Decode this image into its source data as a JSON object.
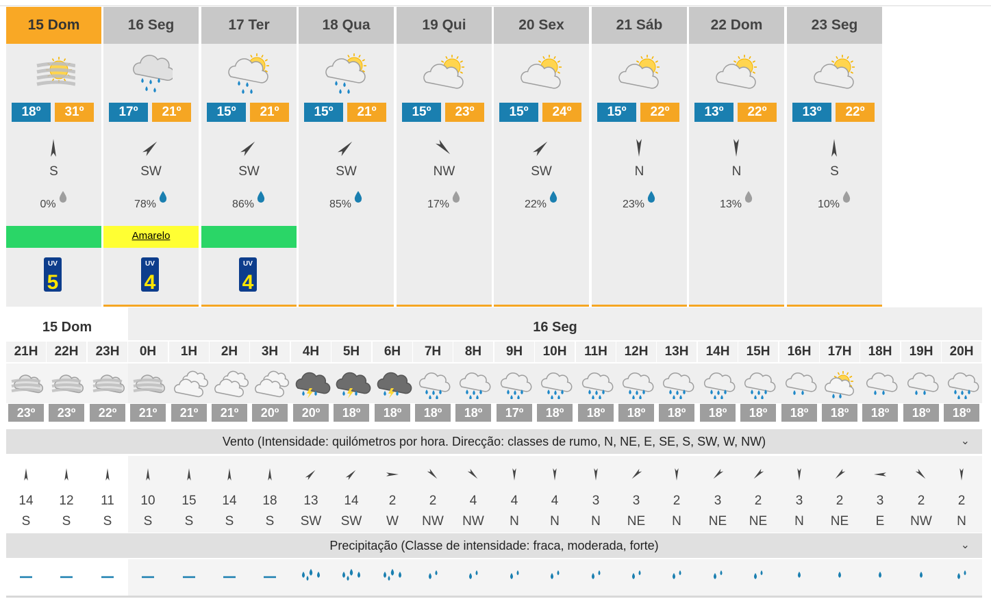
{
  "days": [
    {
      "label": "15 Dom",
      "icon": "fog-sun-icon",
      "tmin": "18º",
      "tmax": "31º",
      "wind_dir": "S",
      "precip": "0%",
      "alert": "",
      "uv": "5",
      "selected": true
    },
    {
      "label": "16 Seg",
      "icon": "rain-cloud-icon",
      "tmin": "17º",
      "tmax": "21º",
      "wind_dir": "SW",
      "precip": "78%",
      "alert": "Amarelo",
      "uv": "4",
      "selected": false
    },
    {
      "label": "17 Ter",
      "icon": "sun-rain-cloud-icon",
      "tmin": "15º",
      "tmax": "21º",
      "wind_dir": "SW",
      "precip": "86%",
      "alert": "",
      "uv": "4",
      "selected": false
    },
    {
      "label": "18 Qua",
      "icon": "sun-rain-cloud-icon",
      "tmin": "15º",
      "tmax": "21º",
      "wind_dir": "SW",
      "precip": "85%",
      "alert": "",
      "uv": "",
      "selected": false
    },
    {
      "label": "19 Qui",
      "icon": "partly-cloudy-icon",
      "tmin": "15º",
      "tmax": "23º",
      "wind_dir": "NW",
      "precip": "17%",
      "alert": "",
      "uv": "",
      "selected": false
    },
    {
      "label": "20 Sex",
      "icon": "partly-cloudy-icon",
      "tmin": "15º",
      "tmax": "24º",
      "wind_dir": "SW",
      "precip": "22%",
      "alert": "",
      "uv": "",
      "selected": false
    },
    {
      "label": "21 Sáb",
      "icon": "partly-cloudy-icon",
      "tmin": "15º",
      "tmax": "22º",
      "wind_dir": "N",
      "precip": "23%",
      "alert": "",
      "uv": "",
      "selected": false
    },
    {
      "label": "22 Dom",
      "icon": "partly-cloudy-icon",
      "tmin": "13º",
      "tmax": "22º",
      "wind_dir": "N",
      "precip": "13%",
      "alert": "",
      "uv": "",
      "selected": false
    },
    {
      "label": "23 Seg",
      "icon": "partly-cloudy-icon",
      "tmin": "13º",
      "tmax": "22º",
      "wind_dir": "S",
      "precip": "10%",
      "alert": "",
      "uv": "",
      "selected": false
    }
  ],
  "uv_label": "UV",
  "hourly": {
    "day1": "15 Dom",
    "day2": "16 Seg",
    "hours": [
      {
        "h": "21H",
        "icon": "fog-icon",
        "t": "23º",
        "ws": "14",
        "wd": "S",
        "p": "none"
      },
      {
        "h": "22H",
        "icon": "fog-icon",
        "t": "23º",
        "ws": "12",
        "wd": "S",
        "p": "none"
      },
      {
        "h": "23H",
        "icon": "fog-icon",
        "t": "22º",
        "ws": "11",
        "wd": "S",
        "p": "none"
      },
      {
        "h": "0H",
        "icon": "fog-icon",
        "t": "21º",
        "ws": "10",
        "wd": "S",
        "p": "none"
      },
      {
        "h": "1H",
        "icon": "cloudy-icon",
        "t": "21º",
        "ws": "15",
        "wd": "S",
        "p": "none"
      },
      {
        "h": "2H",
        "icon": "cloudy-icon",
        "t": "21º",
        "ws": "14",
        "wd": "S",
        "p": "none"
      },
      {
        "h": "3H",
        "icon": "cloudy-icon",
        "t": "20º",
        "ws": "18",
        "wd": "S",
        "p": "none"
      },
      {
        "h": "4H",
        "icon": "thunderstorm-icon",
        "t": "20º",
        "ws": "13",
        "wd": "SW",
        "p": "strong"
      },
      {
        "h": "5H",
        "icon": "thunderstorm-icon",
        "t": "18º",
        "ws": "14",
        "wd": "SW",
        "p": "strong"
      },
      {
        "h": "6H",
        "icon": "thunderstorm-icon",
        "t": "18º",
        "ws": "2",
        "wd": "W",
        "p": "strong"
      },
      {
        "h": "7H",
        "icon": "rain-icon",
        "t": "18º",
        "ws": "2",
        "wd": "NW",
        "p": "moderate"
      },
      {
        "h": "8H",
        "icon": "rain-icon",
        "t": "18º",
        "ws": "4",
        "wd": "NW",
        "p": "moderate"
      },
      {
        "h": "9H",
        "icon": "rain-icon",
        "t": "17º",
        "ws": "4",
        "wd": "N",
        "p": "moderate"
      },
      {
        "h": "10H",
        "icon": "rain-icon",
        "t": "18º",
        "ws": "4",
        "wd": "N",
        "p": "moderate"
      },
      {
        "h": "11H",
        "icon": "rain-icon",
        "t": "18º",
        "ws": "3",
        "wd": "N",
        "p": "moderate"
      },
      {
        "h": "12H",
        "icon": "rain-icon",
        "t": "18º",
        "ws": "3",
        "wd": "NE",
        "p": "moderate"
      },
      {
        "h": "13H",
        "icon": "rain-icon",
        "t": "18º",
        "ws": "2",
        "wd": "N",
        "p": "moderate"
      },
      {
        "h": "14H",
        "icon": "rain-icon",
        "t": "18º",
        "ws": "3",
        "wd": "NE",
        "p": "moderate"
      },
      {
        "h": "15H",
        "icon": "rain-icon",
        "t": "18º",
        "ws": "2",
        "wd": "NE",
        "p": "moderate"
      },
      {
        "h": "16H",
        "icon": "light-rain-icon",
        "t": "18º",
        "ws": "3",
        "wd": "N",
        "p": "weak"
      },
      {
        "h": "17H",
        "icon": "sun-rain-icon",
        "t": "18º",
        "ws": "2",
        "wd": "NE",
        "p": "weak"
      },
      {
        "h": "18H",
        "icon": "light-rain-icon",
        "t": "18º",
        "ws": "3",
        "wd": "E",
        "p": "weak"
      },
      {
        "h": "19H",
        "icon": "light-rain-icon",
        "t": "18º",
        "ws": "2",
        "wd": "NW",
        "p": "weak"
      },
      {
        "h": "20H",
        "icon": "rain-icon",
        "t": "18º",
        "ws": "2",
        "wd": "N",
        "p": "moderate"
      }
    ]
  },
  "sections": {
    "wind": "Vento (Intensidade: quilómetros por hora. Direcção: classes de rumo, N, NE, E, SE, S, SW, W, NW)",
    "precip": "Precipitação (Classe de intensidade: fraca, moderada, forte)"
  },
  "colors": {
    "selected_day": "#f9a825",
    "tmin": "#1a7fb0",
    "tmax": "#f5a623",
    "alert_green": "#2ad667",
    "alert_yellow": "#ffff33",
    "drop": "#1a7fb0"
  }
}
